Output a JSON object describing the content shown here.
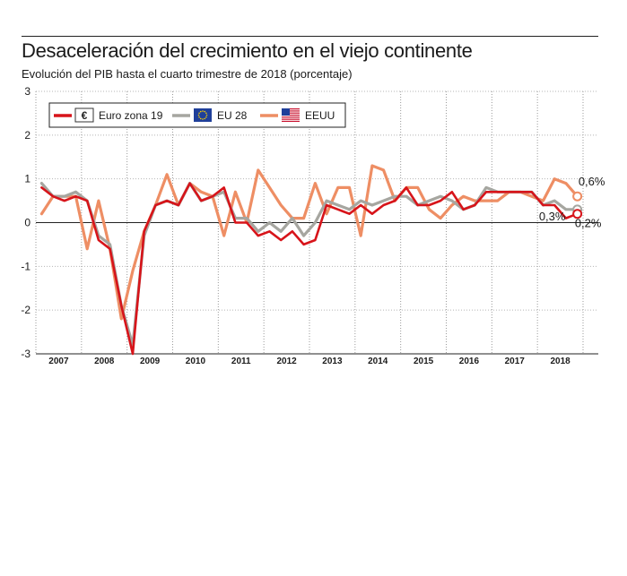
{
  "header": {
    "title": "Desaceleración del crecimiento en el viejo continente",
    "subtitle": "Evolución del PIB hasta el cuarto trimestre de 2018 (porcentaje)"
  },
  "chart_data": {
    "type": "line",
    "title": "Desaceleración del crecimiento en el viejo continente",
    "subtitle": "Evolución del PIB hasta el cuarto trimestre de 2018 (porcentaje)",
    "xlabel": "",
    "ylabel": "",
    "ylim": [
      -3,
      3
    ],
    "yticks": [
      3,
      2,
      1,
      0,
      -1,
      -2,
      -3
    ],
    "grid": "vertical-dotted",
    "legend_position": "top-left",
    "x": [
      "2007T1",
      "2007T2",
      "2007T3",
      "2007T4",
      "2008T1",
      "2008T2",
      "2008T3",
      "2008T4",
      "2009T1",
      "2009T2",
      "2009T3",
      "2009T4",
      "2010T1",
      "2010T2",
      "2010T3",
      "2010T4",
      "2011T1",
      "2011T2",
      "2011T3",
      "2011T4",
      "2012T1",
      "2012T2",
      "2012T3",
      "2012T4",
      "2013T1",
      "2013T2",
      "2013T3",
      "2013T4",
      "2014T1",
      "2014T2",
      "2014T3",
      "2014T4",
      "2015T1",
      "2015T2",
      "2015T3",
      "2015T4",
      "2016T1",
      "2016T2",
      "2016T3",
      "2016T4",
      "2017T1",
      "2017T2",
      "2017T3",
      "2017T4",
      "2018T1",
      "2018T2",
      "2018T3",
      "2018T4"
    ],
    "year_labels": [
      "2007",
      "2008",
      "2009",
      "2010",
      "2011",
      "2012",
      "2013",
      "2014",
      "2015",
      "2016",
      "2017",
      "2018"
    ],
    "series": [
      {
        "name": "EEUU",
        "color": "#ee8e64",
        "width": 3.2,
        "icon": "us-flag-icon",
        "values": [
          0.2,
          0.6,
          0.6,
          0.6,
          -0.6,
          0.5,
          -0.6,
          -2.2,
          -1.1,
          -0.2,
          0.4,
          1.1,
          0.4,
          0.9,
          0.7,
          0.6,
          -0.3,
          0.7,
          0.0,
          1.2,
          0.8,
          0.4,
          0.1,
          0.1,
          0.9,
          0.2,
          0.8,
          0.8,
          -0.3,
          1.3,
          1.2,
          0.5,
          0.8,
          0.8,
          0.3,
          0.1,
          0.4,
          0.6,
          0.5,
          0.5,
          0.5,
          0.7,
          0.7,
          0.6,
          0.5,
          1.0,
          0.9,
          0.6
        ],
        "end_label": "0,6%"
      },
      {
        "name": "EU 28",
        "color": "#a6a6a0",
        "width": 3.2,
        "icon": "eu-flag-icon",
        "values": [
          0.9,
          0.6,
          0.6,
          0.7,
          0.5,
          -0.3,
          -0.5,
          -1.9,
          -2.8,
          -0.3,
          0.4,
          0.5,
          0.4,
          0.9,
          0.5,
          0.6,
          0.7,
          0.1,
          0.1,
          -0.2,
          0.0,
          -0.2,
          0.1,
          -0.3,
          0.0,
          0.5,
          0.4,
          0.3,
          0.5,
          0.4,
          0.5,
          0.6,
          0.6,
          0.4,
          0.5,
          0.6,
          0.5,
          0.3,
          0.4,
          0.8,
          0.7,
          0.7,
          0.7,
          0.7,
          0.4,
          0.5,
          0.3,
          0.3
        ],
        "end_label": "0,3%"
      },
      {
        "name": "Euro zona 19",
        "color": "#d7141a",
        "width": 2.6,
        "icon": "euro-icon",
        "values": [
          0.8,
          0.6,
          0.5,
          0.6,
          0.5,
          -0.4,
          -0.6,
          -1.9,
          -3.0,
          -0.2,
          0.4,
          0.5,
          0.4,
          0.9,
          0.5,
          0.6,
          0.8,
          0.0,
          0.0,
          -0.3,
          -0.2,
          -0.4,
          -0.2,
          -0.5,
          -0.4,
          0.4,
          0.3,
          0.2,
          0.4,
          0.2,
          0.4,
          0.5,
          0.8,
          0.4,
          0.4,
          0.5,
          0.7,
          0.3,
          0.4,
          0.7,
          0.7,
          0.7,
          0.7,
          0.7,
          0.4,
          0.4,
          0.1,
          0.2
        ],
        "end_label": "0,2%"
      }
    ]
  },
  "legend": {
    "items": [
      {
        "label": "Euro zona 19",
        "icon": "euro-icon"
      },
      {
        "label": "EU 28",
        "icon": "eu-flag-icon"
      },
      {
        "label": "EEUU",
        "icon": "us-flag-icon"
      }
    ]
  }
}
